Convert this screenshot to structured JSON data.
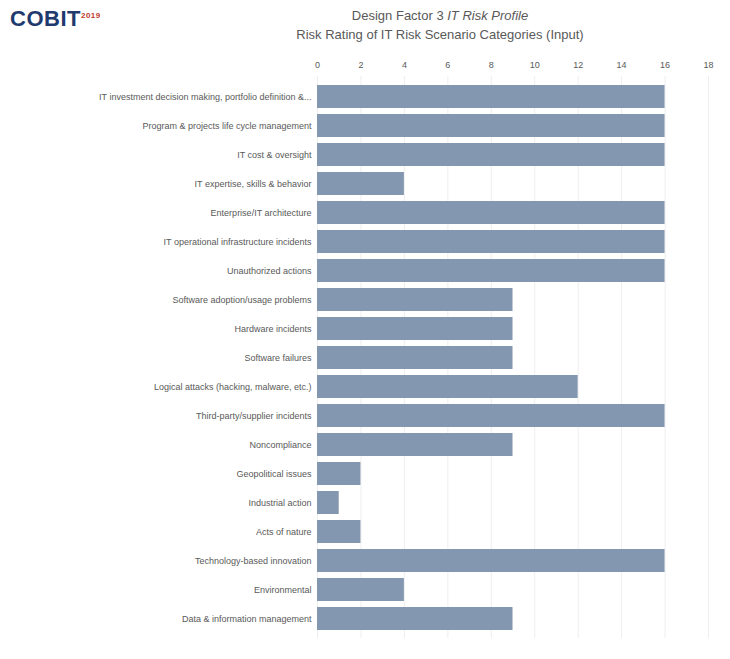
{
  "chart_data": {
    "type": "bar",
    "logo": "COBIT",
    "logo_year": "2019",
    "title": "Design Factor 3",
    "title_italic": "IT Risk Profile",
    "subtitle": "Risk Rating of IT Risk Scenario Categories (Input)",
    "orientation": "horizontal",
    "categories": [
      "IT investment decision making, portfolio definition &...",
      "Program & projects life cycle management",
      "IT cost & oversight",
      "IT expertise, skills & behavior",
      "Enterprise/IT architecture",
      "IT operational infrastructure incidents",
      "Unauthorized actions",
      "Software adoption/usage problems",
      "Hardware incidents",
      "Software failures",
      "Logical attacks (hacking, malware, etc.)",
      "Third-party/supplier incidents",
      "Noncompliance",
      "Geopolitical issues",
      "Industrial action",
      "Acts of nature",
      "Technology-based innovation",
      "Environmental",
      "Data & information management"
    ],
    "values": [
      16,
      16,
      16,
      4,
      16,
      16,
      16,
      9,
      9,
      9,
      12,
      16,
      9,
      2,
      1,
      2,
      16,
      4,
      9
    ],
    "color": "#8497b0",
    "xlim": [
      0,
      18
    ],
    "xticks": [
      0,
      2,
      4,
      6,
      8,
      10,
      12,
      14,
      16,
      18
    ],
    "grid": true
  }
}
